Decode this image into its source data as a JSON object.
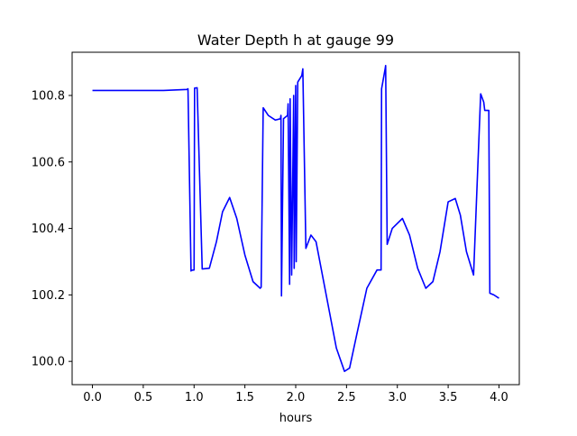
{
  "chart_data": {
    "type": "line",
    "title": "Water Depth h at gauge 99",
    "xlabel": "hours",
    "ylabel": "",
    "xlim": [
      -0.2,
      4.2
    ],
    "ylim": [
      99.93,
      100.93
    ],
    "xticks": [
      0.0,
      0.5,
      1.0,
      1.5,
      2.0,
      2.5,
      3.0,
      3.5,
      4.0
    ],
    "xtick_labels": [
      "0.0",
      "0.5",
      "1.0",
      "1.5",
      "2.0",
      "2.5",
      "3.0",
      "3.5",
      "4.0"
    ],
    "yticks": [
      100.0,
      100.2,
      100.4,
      100.6,
      100.8
    ],
    "ytick_labels": [
      "100.0",
      "100.2",
      "100.4",
      "100.6",
      "100.8"
    ],
    "grid": false,
    "series": [
      {
        "color": "#0000ff",
        "x": [
          0.0,
          0.7,
          0.93,
          0.94,
          0.97,
          0.975,
          1.0,
          1.005,
          1.03,
          1.08,
          1.15,
          1.22,
          1.28,
          1.35,
          1.42,
          1.5,
          1.58,
          1.65,
          1.66,
          1.68,
          1.73,
          1.8,
          1.85,
          1.855,
          1.86,
          1.88,
          1.92,
          1.925,
          1.94,
          1.945,
          1.96,
          1.98,
          1.985,
          2.0,
          2.005,
          2.02,
          2.06,
          2.07,
          2.1,
          2.15,
          2.2,
          2.3,
          2.4,
          2.48,
          2.53,
          2.6,
          2.7,
          2.8,
          2.84,
          2.845,
          2.88,
          2.885,
          2.9,
          2.95,
          3.05,
          3.12,
          3.2,
          3.28,
          3.35,
          3.42,
          3.5,
          3.57,
          3.62,
          3.68,
          3.75,
          3.82,
          3.85,
          3.86,
          3.9,
          3.91,
          3.95,
          4.0
        ],
        "y": [
          100.815,
          100.815,
          100.818,
          100.82,
          100.272,
          100.274,
          100.275,
          100.822,
          100.823,
          100.278,
          100.28,
          100.36,
          100.45,
          100.493,
          100.43,
          100.32,
          100.24,
          100.22,
          100.223,
          100.763,
          100.74,
          100.726,
          100.73,
          100.74,
          100.197,
          100.73,
          100.74,
          100.775,
          100.232,
          100.79,
          100.26,
          100.8,
          100.28,
          100.83,
          100.3,
          100.84,
          100.86,
          100.88,
          100.34,
          100.38,
          100.36,
          100.2,
          100.04,
          99.97,
          99.98,
          100.08,
          100.22,
          100.275,
          100.275,
          100.82,
          100.88,
          100.89,
          100.352,
          100.4,
          100.43,
          100.38,
          100.28,
          100.22,
          100.24,
          100.33,
          100.48,
          100.49,
          100.44,
          100.33,
          100.26,
          100.805,
          100.78,
          100.755,
          100.755,
          100.205,
          100.2,
          100.19
        ]
      }
    ]
  }
}
